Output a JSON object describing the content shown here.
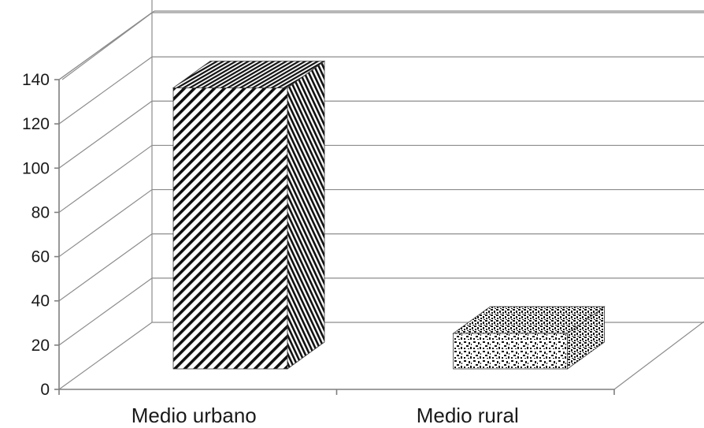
{
  "chart_data": {
    "type": "bar",
    "style": "3d-column",
    "categories": [
      "Medio urbano",
      "Medio rural"
    ],
    "values": [
      127,
      16
    ],
    "patterns": [
      "diagonal-stripes",
      "speckled"
    ],
    "ylim": [
      0,
      140
    ],
    "yticks": [
      "0",
      "20",
      "40",
      "60",
      "80",
      "100",
      "120",
      "140"
    ],
    "title": "",
    "xlabel": "",
    "ylabel": "",
    "grid": true,
    "legend": "none"
  }
}
